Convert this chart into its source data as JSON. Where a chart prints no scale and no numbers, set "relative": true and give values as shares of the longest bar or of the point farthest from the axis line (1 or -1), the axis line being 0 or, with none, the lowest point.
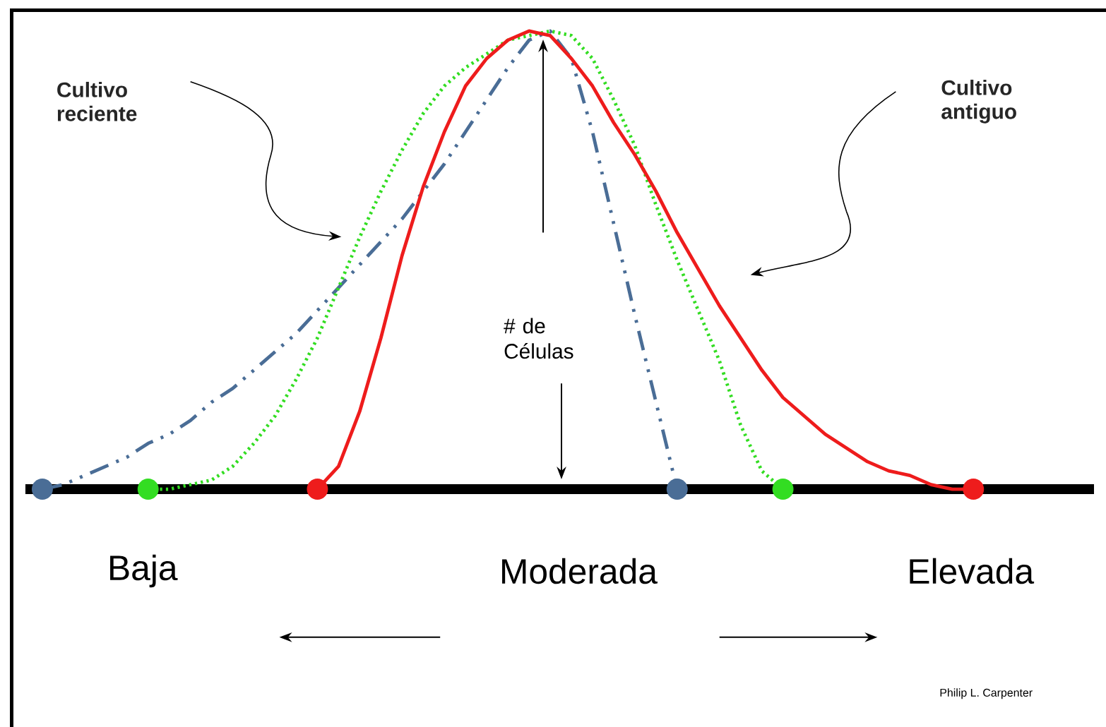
{
  "chart_data": {
    "type": "line",
    "relative": true,
    "categories": [
      null,
      null,
      null,
      null,
      null,
      null,
      null,
      null,
      null,
      null,
      null,
      null,
      null,
      null,
      null,
      null,
      null,
      null,
      null,
      null,
      null,
      null,
      null,
      null,
      null,
      null,
      null,
      null,
      null,
      null,
      null,
      null,
      null,
      null,
      null,
      null,
      null,
      null,
      null,
      null,
      null,
      null,
      null,
      null,
      null,
      null,
      null,
      null,
      null,
      null
    ],
    "series": [
      {
        "color": "#4a6d96",
        "line_style": "dashdot",
        "values": [
          0,
          0.01,
          0.03,
          0.05,
          0.07,
          0.1,
          0.12,
          0.15,
          0.19,
          0.22,
          0.26,
          0.3,
          0.34,
          0.39,
          0.44,
          0.49,
          0.54,
          0.59,
          0.65,
          0.71,
          0.78,
          0.85,
          0.92,
          0.98,
          1,
          0.94,
          0.78,
          0.58,
          0.38,
          0.19,
          0,
          null,
          null,
          null,
          null,
          null,
          null,
          null,
          null,
          null,
          null,
          null,
          null,
          null,
          null,
          null,
          null,
          null,
          null,
          null
        ]
      },
      {
        "color": "#33dd22",
        "line_style": "dotted",
        "values": [
          null,
          null,
          null,
          null,
          null,
          0,
          0,
          0.01,
          0.02,
          0.05,
          0.1,
          0.16,
          0.24,
          0.33,
          0.44,
          0.55,
          0.65,
          0.74,
          0.82,
          0.88,
          0.92,
          0.95,
          0.98,
          0.99,
          1,
          0.99,
          0.94,
          0.85,
          0.75,
          0.62,
          0.5,
          0.39,
          0.28,
          0.14,
          0.04,
          0,
          null,
          null,
          null,
          null,
          null,
          null,
          null,
          null,
          null,
          null,
          null,
          null,
          null,
          null
        ]
      },
      {
        "color": "#ee1c1c",
        "line_style": "solid",
        "values": [
          null,
          null,
          null,
          null,
          null,
          null,
          null,
          null,
          null,
          null,
          null,
          null,
          null,
          0,
          0.05,
          0.17,
          0.33,
          0.51,
          0.66,
          0.78,
          0.88,
          0.94,
          0.98,
          1,
          0.99,
          0.94,
          0.88,
          0.8,
          0.73,
          0.65,
          0.56,
          0.48,
          0.4,
          0.33,
          0.26,
          0.2,
          0.16,
          0.12,
          0.09,
          0.06,
          0.04,
          0.03,
          0.01,
          0,
          0,
          null,
          null,
          null,
          null,
          null
        ]
      }
    ],
    "annotations": [
      "Cultivo reciente",
      "Cultivo antiguo",
      "# de Células",
      "Baja",
      "Moderada",
      "Elevada",
      "Philip L. Carpenter"
    ]
  }
}
